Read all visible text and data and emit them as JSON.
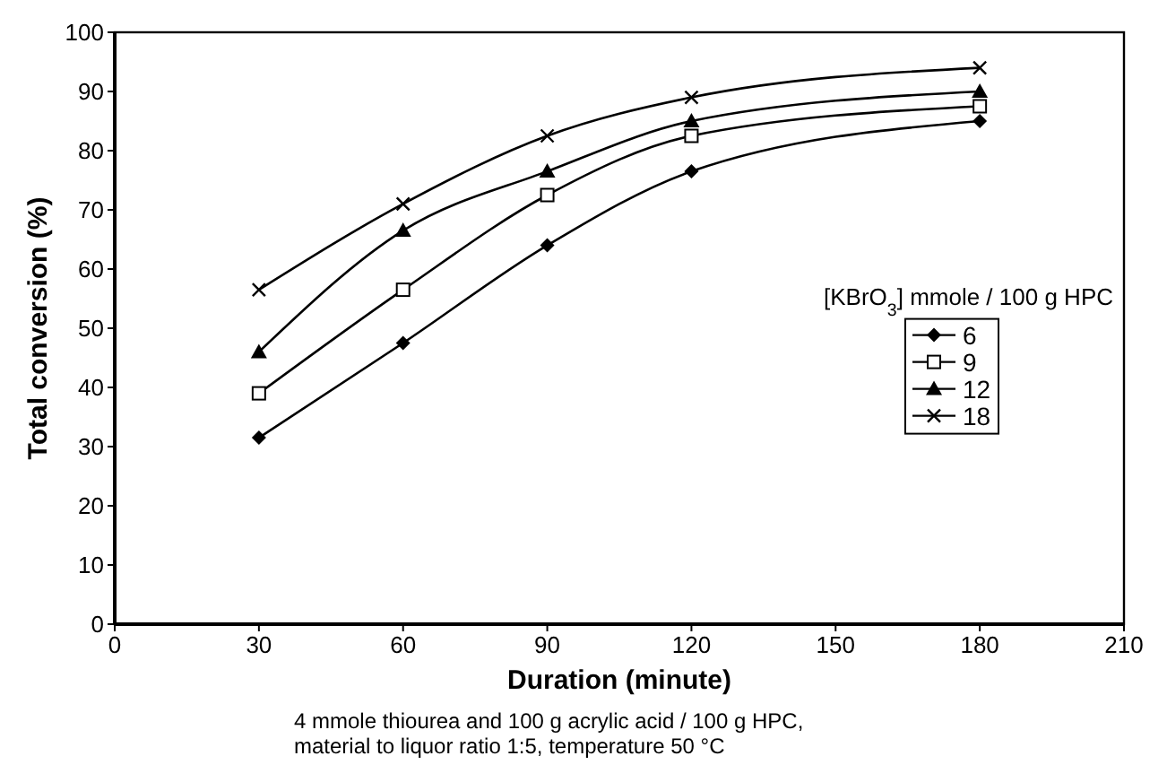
{
  "chart_data": {
    "type": "line",
    "xlabel": "Duration (minute)",
    "ylabel": "Total conversion (%)",
    "legend_title": "[KBrO$_{3}$] mmole / 100 g HPC",
    "legend": "right",
    "grid": false,
    "x": [
      30,
      60,
      90,
      120,
      180
    ],
    "xlim": [
      0,
      210
    ],
    "xticks": [
      0,
      30,
      60,
      90,
      120,
      150,
      180,
      210
    ],
    "ylim": [
      0,
      100
    ],
    "yticks": [
      0,
      10,
      20,
      30,
      40,
      50,
      60,
      70,
      80,
      90,
      100
    ],
    "series": [
      {
        "name": "6",
        "color": "#000000",
        "marker": "diamond",
        "values": [
          31.5,
          47.5,
          64,
          76.5,
          85
        ]
      },
      {
        "name": "9",
        "color": "#000000",
        "marker": "square",
        "values": [
          39,
          56.5,
          72.5,
          82.5,
          87.5
        ]
      },
      {
        "name": "12",
        "color": "#000000",
        "marker": "triangle",
        "values": [
          46,
          66.5,
          76.5,
          85,
          90
        ]
      },
      {
        "name": "18",
        "color": "#000000",
        "marker": "cross",
        "values": [
          56.5,
          71,
          82.5,
          89,
          94
        ]
      }
    ],
    "annotations": [
      "4 mmole thiourea and 100 g acrylic acid / 100 g HPC,",
      "material to liquor ratio 1:5, temperature 50 °C"
    ]
  }
}
